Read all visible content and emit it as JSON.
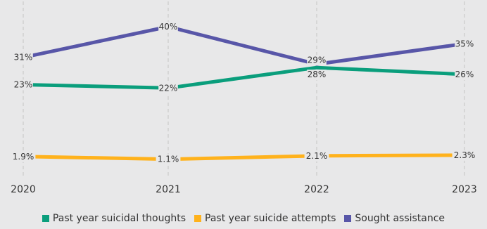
{
  "chart_data": {
    "type": "line",
    "title": "",
    "xlabel": "",
    "ylabel": "",
    "categories": [
      "2020",
      "2021",
      "2022",
      "2023"
    ],
    "ylim": [
      0,
      45
    ],
    "grid": {
      "vertical": true,
      "horizontal": false,
      "style": "dashed"
    },
    "legend_position": "bottom",
    "series": [
      {
        "name": "Past year suicidal thoughts",
        "color": "#0a9e7c",
        "values": [
          23,
          22,
          28,
          26
        ],
        "labels": [
          "23%",
          "22%",
          "28%",
          "26%"
        ]
      },
      {
        "name": "Past year suicide attempts",
        "color": "#ffb21c",
        "values": [
          1.9,
          1.1,
          2.1,
          2.3
        ],
        "labels": [
          "1.9%",
          "1.1%",
          "2.1%",
          "2.3%"
        ]
      },
      {
        "name": "Sought assistance",
        "color": "#5856a8",
        "values": [
          31,
          40,
          29,
          35
        ],
        "labels": [
          "31%",
          "40%",
          "29%",
          "35%"
        ]
      }
    ]
  }
}
